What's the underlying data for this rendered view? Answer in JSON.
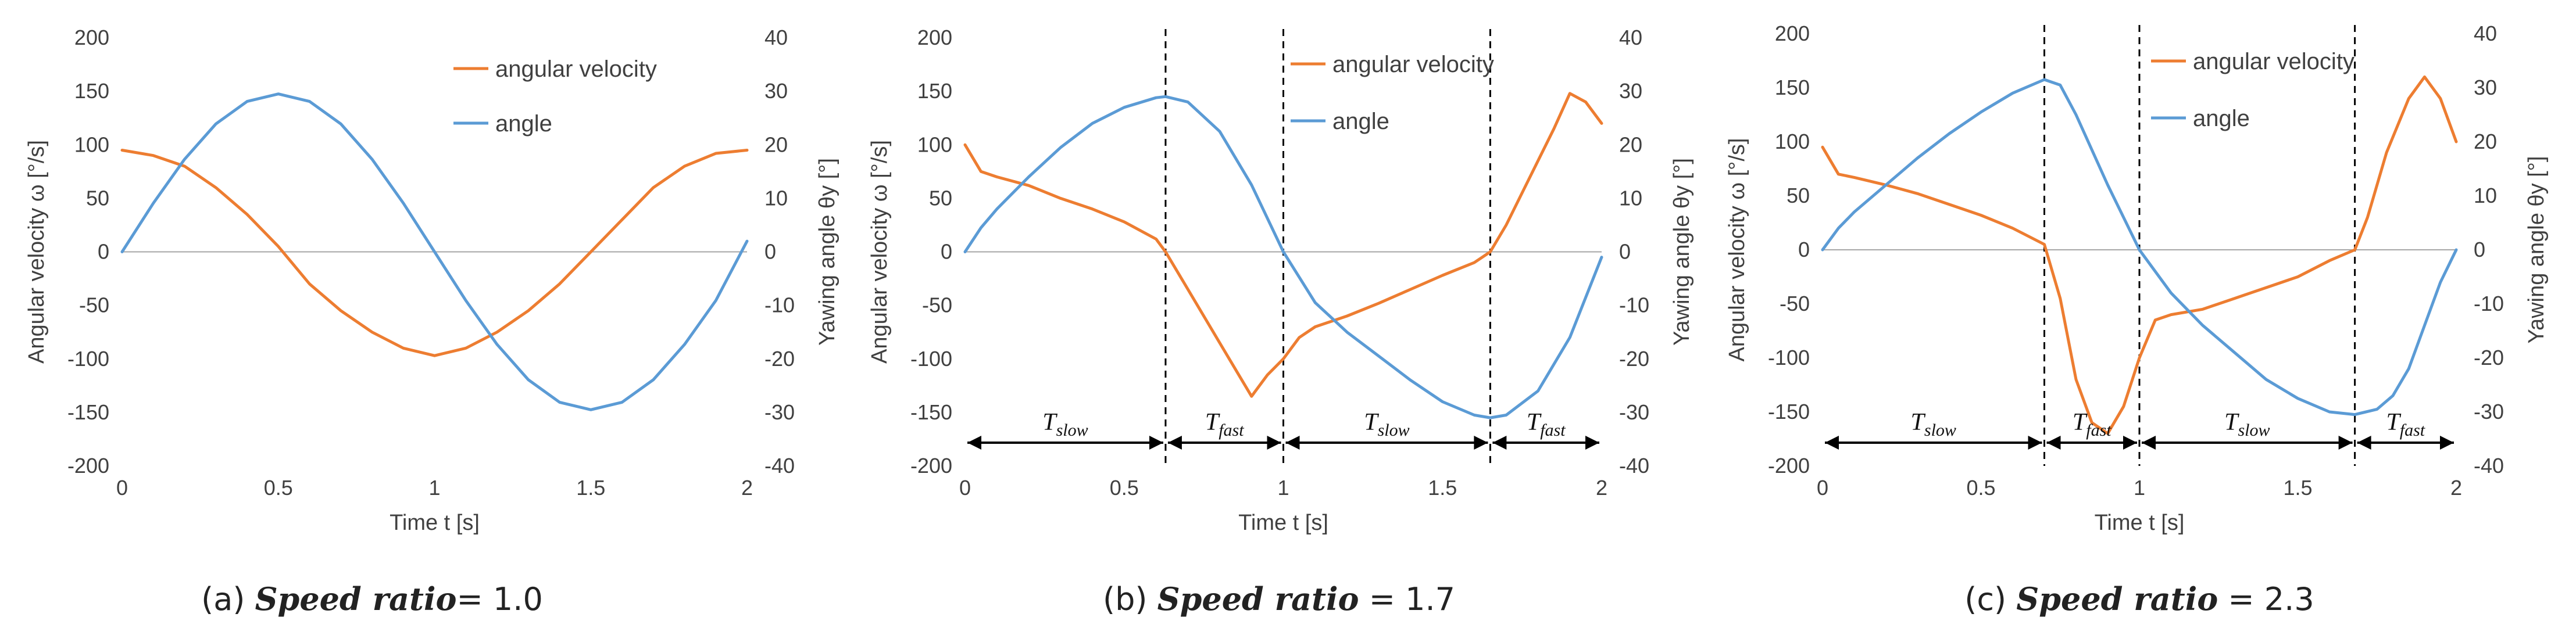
{
  "colors": {
    "angular_velocity": "#ED7D31",
    "angle": "#5B9BD5",
    "axis": "#A6A6A6",
    "text": "#404040",
    "marker": "#000000"
  },
  "chart_data": [
    {
      "type": "line",
      "caption_prefix": "(a) ",
      "caption_label": "Speed ratio",
      "caption_suffix": "= 1.0",
      "xlabel": "Time t [s]",
      "ylabel": "Angular velocity ω [°/s]",
      "y2label": "Yawing angle θy [°]",
      "xlim": [
        0,
        2
      ],
      "ylim": [
        -200,
        200
      ],
      "y2lim": [
        -40,
        40
      ],
      "xticks": [
        "0",
        "0.5",
        "1",
        "1.5",
        "2"
      ],
      "yticks": [
        "200",
        "150",
        "100",
        "50",
        "0",
        "-50",
        "-100",
        "-150",
        "-200"
      ],
      "y2ticks": [
        "40",
        "30",
        "20",
        "10",
        "0",
        "-10",
        "-20",
        "-30",
        "-40"
      ],
      "legend": [
        "angular velocity",
        "angle"
      ],
      "series": [
        {
          "name": "angular velocity",
          "axis": "left",
          "x": [
            0,
            0.1,
            0.2,
            0.3,
            0.4,
            0.5,
            0.6,
            0.7,
            0.8,
            0.9,
            1.0,
            1.1,
            1.2,
            1.3,
            1.4,
            1.5,
            1.6,
            1.7,
            1.8,
            1.9,
            2.0
          ],
          "y": [
            95,
            90,
            80,
            60,
            35,
            5,
            -30,
            -55,
            -75,
            -90,
            -97,
            -90,
            -75,
            -55,
            -30,
            0,
            30,
            60,
            80,
            92,
            95
          ]
        },
        {
          "name": "angle",
          "axis": "right",
          "x": [
            0,
            0.1,
            0.2,
            0.3,
            0.4,
            0.5,
            0.6,
            0.7,
            0.8,
            0.9,
            1.0,
            1.1,
            1.2,
            1.3,
            1.4,
            1.5,
            1.6,
            1.7,
            1.8,
            1.9,
            2.0
          ],
          "y": [
            0,
            9.1,
            17.3,
            23.9,
            28.1,
            29.5,
            28.1,
            23.9,
            17.3,
            9.1,
            0,
            -9.1,
            -17.3,
            -23.9,
            -28.1,
            -29.5,
            -28.1,
            -23.9,
            -17.3,
            -9.1,
            2
          ]
        }
      ],
      "annotations": []
    },
    {
      "type": "line",
      "caption_prefix": "(b) ",
      "caption_label": "Speed ratio",
      "caption_suffix": " = 1.7",
      "xlabel": "Time t [s]",
      "ylabel": "Angular velocity ω [°/s]",
      "y2label": "Yawing angle θy [°]",
      "xlim": [
        0,
        2
      ],
      "ylim": [
        -200,
        200
      ],
      "y2lim": [
        -40,
        40
      ],
      "xticks": [
        "0",
        "0.5",
        "1",
        "1.5",
        "2"
      ],
      "yticks": [
        "200",
        "150",
        "100",
        "50",
        "0",
        "-50",
        "-100",
        "-150",
        "-200"
      ],
      "y2ticks": [
        "40",
        "30",
        "20",
        "10",
        "0",
        "-10",
        "-20",
        "-30",
        "-40"
      ],
      "legend": [
        "angular velocity",
        "angle"
      ],
      "series": [
        {
          "name": "angular velocity",
          "axis": "left",
          "x": [
            0,
            0.05,
            0.1,
            0.2,
            0.3,
            0.4,
            0.5,
            0.6,
            0.63,
            0.7,
            0.8,
            0.85,
            0.9,
            0.95,
            1.0,
            1.05,
            1.1,
            1.2,
            1.3,
            1.4,
            1.5,
            1.6,
            1.65,
            1.7,
            1.75,
            1.8,
            1.85,
            1.9,
            1.95,
            2.0
          ],
          "y": [
            100,
            75,
            70,
            62,
            50,
            40,
            28,
            12,
            0,
            -35,
            -85,
            -110,
            -135,
            -115,
            -100,
            -80,
            -70,
            -60,
            -48,
            -35,
            -22,
            -10,
            0,
            25,
            55,
            85,
            115,
            148,
            140,
            120
          ]
        },
        {
          "name": "angle",
          "axis": "right",
          "x": [
            0,
            0.05,
            0.1,
            0.2,
            0.3,
            0.4,
            0.5,
            0.6,
            0.63,
            0.7,
            0.8,
            0.9,
            1.0,
            1.1,
            1.2,
            1.3,
            1.4,
            1.5,
            1.6,
            1.65,
            1.7,
            1.8,
            1.9,
            2.0
          ],
          "y": [
            0,
            4.5,
            8,
            14,
            19.5,
            24,
            27,
            28.8,
            29,
            28,
            22.5,
            12.5,
            0,
            -9.5,
            -15,
            -19.5,
            -24,
            -28,
            -30.5,
            -31,
            -30.5,
            -26,
            -16,
            -1
          ]
        }
      ],
      "annotations": [
        "T",
        "slow",
        "T",
        "fast",
        "T",
        "slow",
        "T",
        "fast"
      ]
    },
    {
      "type": "line",
      "caption_prefix": "(c) ",
      "caption_label": "Speed ratio",
      "caption_suffix": " = 2.3",
      "xlabel": "Time t [s]",
      "ylabel": "Angular velocity ω [°/s]",
      "y2label": "Yawing angle θy [°]",
      "xlim": [
        0,
        2
      ],
      "ylim": [
        -200,
        200
      ],
      "y2lim": [
        -40,
        40
      ],
      "xticks": [
        "0",
        "0.5",
        "1",
        "1.5",
        "2"
      ],
      "yticks": [
        "200",
        "150",
        "100",
        "50",
        "0",
        "-50",
        "-100",
        "-150",
        "-200"
      ],
      "y2ticks": [
        "40",
        "30",
        "20",
        "10",
        "0",
        "-10",
        "-20",
        "-30",
        "-40"
      ],
      "legend": [
        "angular velocity",
        "angle"
      ],
      "series": [
        {
          "name": "angular velocity",
          "axis": "left",
          "x": [
            0,
            0.05,
            0.1,
            0.2,
            0.3,
            0.4,
            0.5,
            0.6,
            0.7,
            0.75,
            0.8,
            0.85,
            0.9,
            0.95,
            1.0,
            1.05,
            1.1,
            1.2,
            1.3,
            1.4,
            1.5,
            1.6,
            1.68,
            1.72,
            1.78,
            1.85,
            1.9,
            1.95,
            2.0
          ],
          "y": [
            95,
            70,
            67,
            60,
            52,
            42,
            32,
            20,
            5,
            -45,
            -120,
            -160,
            -170,
            -145,
            -100,
            -65,
            -60,
            -55,
            -45,
            -35,
            -25,
            -10,
            0,
            30,
            90,
            140,
            160,
            140,
            100
          ]
        },
        {
          "name": "angle",
          "axis": "right",
          "x": [
            0,
            0.05,
            0.1,
            0.2,
            0.3,
            0.4,
            0.5,
            0.6,
            0.7,
            0.75,
            0.8,
            0.9,
            1.0,
            1.1,
            1.2,
            1.3,
            1.4,
            1.5,
            1.6,
            1.68,
            1.75,
            1.8,
            1.85,
            1.9,
            1.95,
            2.0
          ],
          "y": [
            0,
            4,
            7,
            12,
            17,
            21.5,
            25.5,
            29,
            31.5,
            30.5,
            25,
            12,
            0,
            -8,
            -14,
            -19,
            -24,
            -27.5,
            -30,
            -30.5,
            -29.5,
            -27,
            -22,
            -14,
            -6,
            0
          ]
        }
      ],
      "annotations": [
        "T",
        "slow",
        "T",
        "fast",
        "T",
        "slow",
        "T",
        "fast"
      ]
    }
  ]
}
